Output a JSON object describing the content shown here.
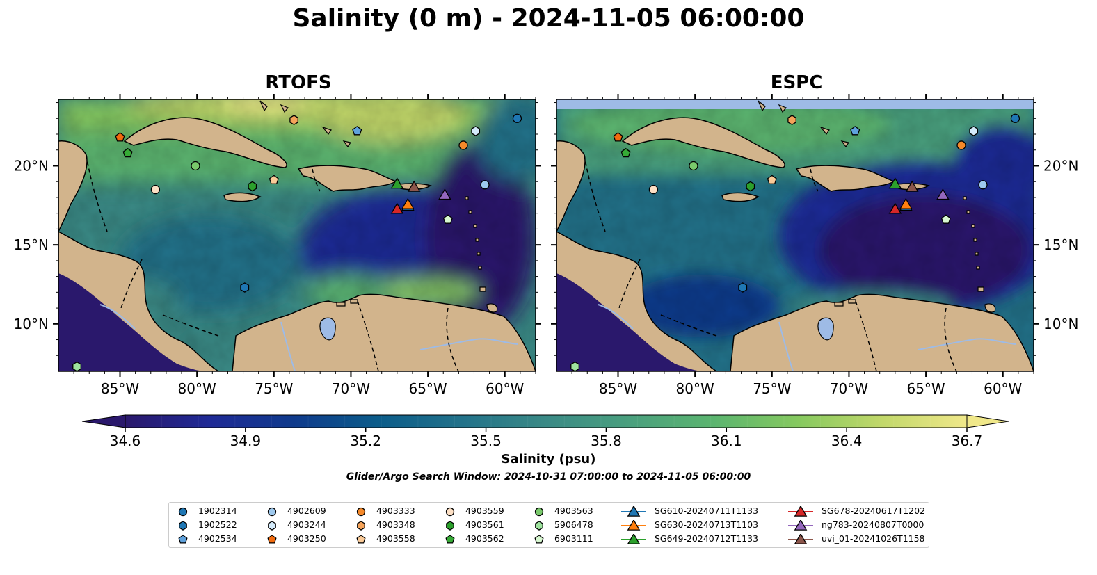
{
  "title": "Salinity (0 m) - 2024-11-05 06:00:00",
  "colorbar": {
    "label": "Salinity (psu)",
    "ticks": [
      "34.6",
      "34.9",
      "35.2",
      "35.5",
      "35.8",
      "36.1",
      "36.4",
      "36.7"
    ],
    "min": 34.6,
    "max": 36.7,
    "extend": "both",
    "colormap": "haline",
    "stops": [
      "#2a186c",
      "#1f2a96",
      "#0f3a8c",
      "#0b5c8a",
      "#22728a",
      "#3a8a86",
      "#4aa07e",
      "#5bb56f",
      "#86c95f",
      "#c2d86a",
      "#f0e88a"
    ]
  },
  "search_window": "Glider/Argo Search Window: 2024-10-31 07:00:00 to 2024-11-05 06:00:00",
  "chart_data": [
    {
      "type": "map",
      "title": "RTOFS",
      "xlim": [
        -89,
        -58
      ],
      "ylim": [
        7,
        24.2
      ],
      "x_ticks": [
        "85°W",
        "80°W",
        "75°W",
        "70°W",
        "65°W",
        "60°W"
      ],
      "y_ticks": [
        "20°N",
        "15°N",
        "10°N"
      ],
      "y_ticks_side": "left"
    },
    {
      "type": "map",
      "title": "ESPC",
      "xlim": [
        -89,
        -58
      ],
      "ylim": [
        7,
        24.2
      ],
      "x_ticks": [
        "85°W",
        "80°W",
        "75°W",
        "70°W",
        "65°W",
        "60°W"
      ],
      "y_ticks": [
        "20°N",
        "15°N",
        "10°N"
      ],
      "y_ticks_side": "right"
    }
  ],
  "platforms": [
    {
      "id": "1902314",
      "kind": "argo",
      "marker": "circle",
      "color": "#1f77b4",
      "lon": -59.2,
      "lat": 23.0
    },
    {
      "id": "1902522",
      "kind": "argo",
      "marker": "hexagon",
      "color": "#1f77b4",
      "lon": -76.9,
      "lat": 12.3
    },
    {
      "id": "4902534",
      "kind": "argo",
      "marker": "pentagon",
      "color": "#5fa2dd",
      "lon": -69.6,
      "lat": 22.2
    },
    {
      "id": "4902609",
      "kind": "argo",
      "marker": "circle",
      "color": "#9ec9ee",
      "lon": -61.3,
      "lat": 18.8
    },
    {
      "id": "4903244",
      "kind": "argo",
      "marker": "hexagon",
      "color": "#d4ebfb",
      "lon": -61.9,
      "lat": 22.2
    },
    {
      "id": "4903250",
      "kind": "argo",
      "marker": "pentagon",
      "color": "#f26b0e",
      "lon": -85.0,
      "lat": 21.8
    },
    {
      "id": "4903333",
      "kind": "argo",
      "marker": "circle",
      "color": "#f5892a",
      "lon": -62.7,
      "lat": 21.3
    },
    {
      "id": "4903348",
      "kind": "argo",
      "marker": "hexagon",
      "color": "#f5a35a",
      "lon": -73.7,
      "lat": 22.9
    },
    {
      "id": "4903558",
      "kind": "argo",
      "marker": "pentagon",
      "color": "#fbcb98",
      "lon": -75.0,
      "lat": 19.1
    },
    {
      "id": "4903559",
      "kind": "argo",
      "marker": "circle",
      "color": "#fde0c5",
      "lon": -82.7,
      "lat": 18.5
    },
    {
      "id": "4903561",
      "kind": "argo",
      "marker": "hexagon",
      "color": "#2ca02c",
      "lon": -76.4,
      "lat": 18.7
    },
    {
      "id": "4903562",
      "kind": "argo",
      "marker": "pentagon",
      "color": "#36ab36",
      "lon": -84.5,
      "lat": 20.8
    },
    {
      "id": "4903563",
      "kind": "argo",
      "marker": "circle",
      "color": "#79c96b",
      "lon": -80.1,
      "lat": 20.0
    },
    {
      "id": "5906478",
      "kind": "argo",
      "marker": "hexagon",
      "color": "#9ee39e",
      "lon": -87.8,
      "lat": 7.3
    },
    {
      "id": "6903111",
      "kind": "argo",
      "marker": "pentagon",
      "color": "#d7f7d0",
      "lon": -63.7,
      "lat": 16.6
    },
    {
      "id": "SG610-20240711T1133",
      "kind": "glider",
      "marker": "triangle",
      "color": "#1f77b4",
      "lon": -66.3,
      "lat": 17.5
    },
    {
      "id": "SG630-20240713T1103",
      "kind": "glider",
      "marker": "triangle",
      "color": "#ff7f0e",
      "lon": -66.3,
      "lat": 17.6
    },
    {
      "id": "SG649-20240712T1133",
      "kind": "glider",
      "marker": "triangle",
      "color": "#2ca02c",
      "lon": -67.0,
      "lat": 18.9
    },
    {
      "id": "SG678-20240617T1202",
      "kind": "glider",
      "marker": "triangle",
      "color": "#d62728",
      "lon": -67.0,
      "lat": 17.3
    },
    {
      "id": "ng783-20240807T0000",
      "kind": "glider",
      "marker": "triangle",
      "color": "#9467bd",
      "lon": -63.9,
      "lat": 18.2
    },
    {
      "id": "uvi_01-20241026T1158",
      "kind": "glider",
      "marker": "triangle",
      "color": "#8c564b",
      "lon": -65.9,
      "lat": 18.7
    }
  ]
}
